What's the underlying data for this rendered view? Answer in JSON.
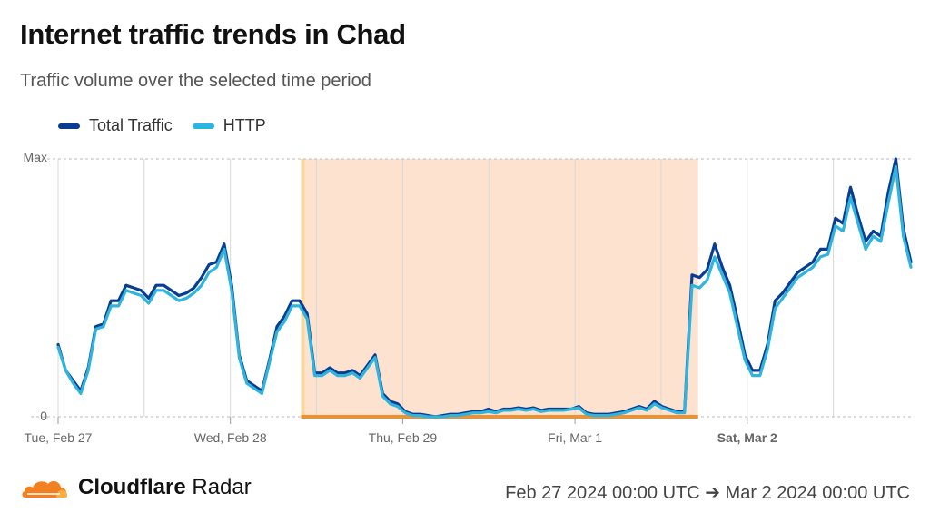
{
  "header": {
    "title": "Internet traffic trends in Chad",
    "subtitle": "Traffic volume over the selected time period"
  },
  "legend": [
    {
      "label": "Total Traffic",
      "color": "#0a3d91"
    },
    {
      "label": "HTTP",
      "color": "#2fb4de"
    }
  ],
  "footer": {
    "brand_bold": "Cloudflare",
    "brand_regular": "Radar",
    "date_range": "Feb 27 2024 00:00 UTC ➔ Mar 2 2024 00:00 UTC"
  },
  "colors": {
    "total": "#0a3d91",
    "http": "#2fb4de",
    "outage_fill": "#fde3cf",
    "outage_edge": "#fbd7a0",
    "outage_bar": "#f0902f",
    "logo_orange": "#f38020",
    "logo_light": "#fbad41"
  },
  "chart_data": {
    "type": "line",
    "y_tick_labels": [
      "Max",
      "0"
    ],
    "ylim": [
      0,
      1
    ],
    "xlim": [
      0,
      99
    ],
    "x_ticks": [
      {
        "label": "Tue, Feb 27",
        "x": 0,
        "bold": false
      },
      {
        "label": "Wed, Feb 28",
        "x": 20,
        "bold": false
      },
      {
        "label": "Thu, Feb 29",
        "x": 40,
        "bold": false
      },
      {
        "label": "Fri, Mar 1",
        "x": 60,
        "bold": false
      },
      {
        "label": "Sat, Mar 2",
        "x": 80,
        "bold": true
      }
    ],
    "grid_x": [
      10,
      20,
      30,
      40,
      50,
      60,
      70,
      80,
      90
    ],
    "outage_range": [
      28.2,
      74.3
    ],
    "series": [
      {
        "name": "Total Traffic",
        "values": [
          0.28,
          0.18,
          0.14,
          0.1,
          0.19,
          0.35,
          0.36,
          0.45,
          0.45,
          0.51,
          0.5,
          0.49,
          0.46,
          0.51,
          0.51,
          0.49,
          0.47,
          0.48,
          0.5,
          0.54,
          0.59,
          0.6,
          0.67,
          0.51,
          0.24,
          0.14,
          0.12,
          0.1,
          0.22,
          0.35,
          0.39,
          0.45,
          0.45,
          0.4,
          0.17,
          0.17,
          0.19,
          0.17,
          0.17,
          0.18,
          0.16,
          0.2,
          0.24,
          0.09,
          0.06,
          0.05,
          0.02,
          0.01,
          0.01,
          0.005,
          0.0,
          0.005,
          0.01,
          0.01,
          0.015,
          0.02,
          0.02,
          0.03,
          0.02,
          0.03,
          0.03,
          0.035,
          0.03,
          0.035,
          0.025,
          0.03,
          0.03,
          0.03,
          0.03,
          0.04,
          0.015,
          0.01,
          0.01,
          0.01,
          0.015,
          0.02,
          0.03,
          0.04,
          0.03,
          0.06,
          0.04,
          0.03,
          0.02,
          0.02,
          0.55,
          0.54,
          0.57,
          0.67,
          0.58,
          0.51,
          0.38,
          0.24,
          0.18,
          0.18,
          0.28,
          0.45,
          0.48,
          0.52,
          0.56,
          0.58,
          0.6,
          0.65,
          0.65,
          0.77,
          0.75,
          0.89,
          0.78,
          0.68,
          0.72,
          0.7,
          0.87,
          1.0,
          0.73,
          0.6
        ]
      },
      {
        "name": "HTTP",
        "values": [
          0.27,
          0.18,
          0.13,
          0.09,
          0.18,
          0.34,
          0.35,
          0.43,
          0.43,
          0.49,
          0.48,
          0.47,
          0.44,
          0.49,
          0.49,
          0.47,
          0.45,
          0.46,
          0.48,
          0.51,
          0.56,
          0.58,
          0.65,
          0.49,
          0.23,
          0.13,
          0.11,
          0.09,
          0.21,
          0.33,
          0.37,
          0.43,
          0.43,
          0.38,
          0.16,
          0.16,
          0.18,
          0.16,
          0.16,
          0.17,
          0.15,
          0.19,
          0.23,
          0.08,
          0.05,
          0.04,
          0.015,
          0.005,
          0.005,
          0.0,
          0.0,
          0.0,
          0.005,
          0.005,
          0.01,
          0.015,
          0.015,
          0.02,
          0.015,
          0.025,
          0.025,
          0.03,
          0.025,
          0.03,
          0.02,
          0.025,
          0.025,
          0.025,
          0.03,
          0.035,
          0.01,
          0.005,
          0.005,
          0.005,
          0.01,
          0.015,
          0.025,
          0.035,
          0.025,
          0.05,
          0.035,
          0.025,
          0.015,
          0.015,
          0.51,
          0.5,
          0.53,
          0.62,
          0.55,
          0.48,
          0.35,
          0.22,
          0.16,
          0.16,
          0.26,
          0.42,
          0.46,
          0.5,
          0.54,
          0.56,
          0.58,
          0.62,
          0.63,
          0.74,
          0.72,
          0.85,
          0.75,
          0.65,
          0.7,
          0.68,
          0.83,
          0.97,
          0.7,
          0.58
        ]
      }
    ]
  }
}
